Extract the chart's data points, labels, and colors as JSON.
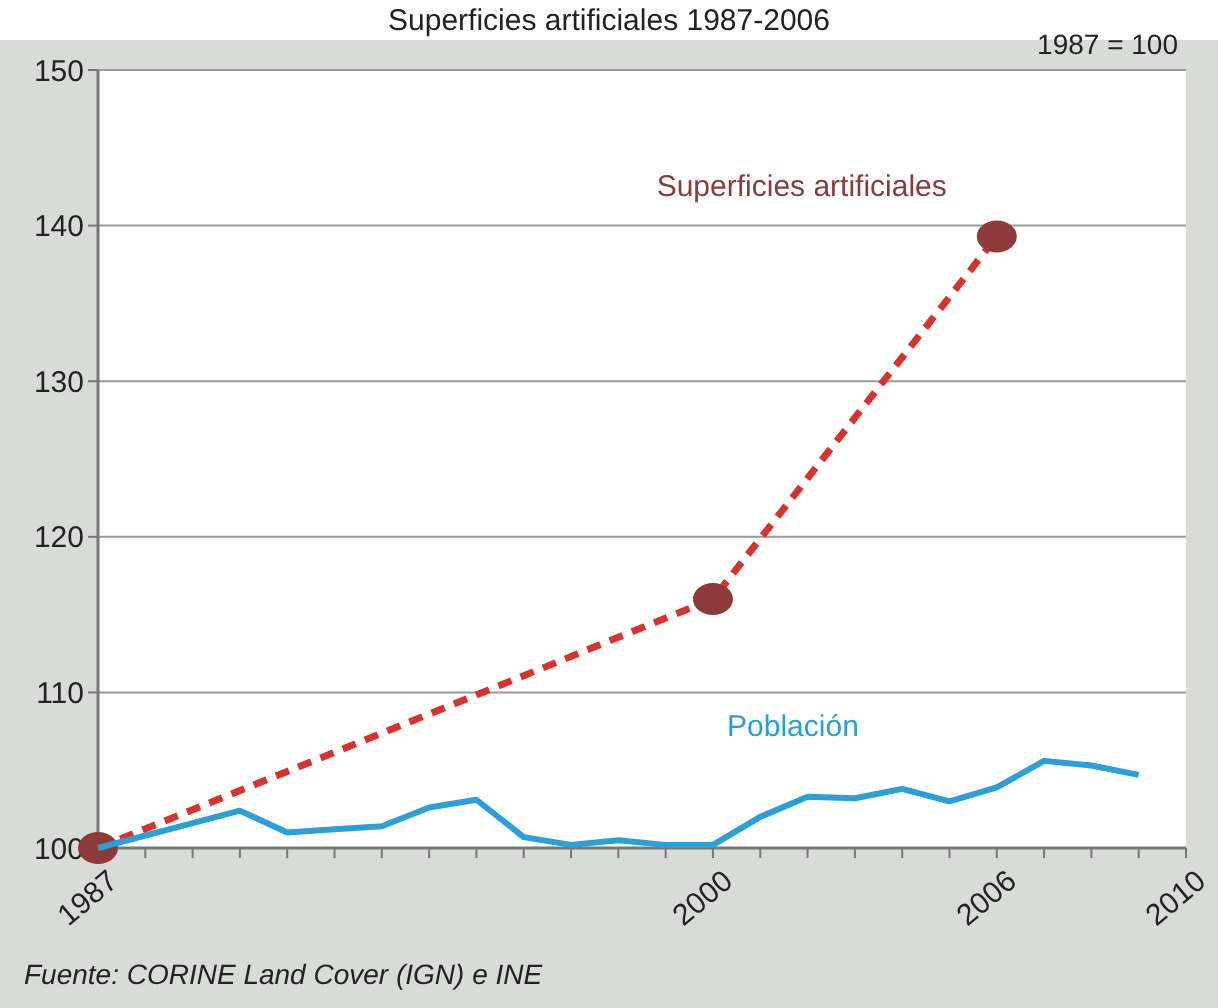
{
  "chart_data": {
    "type": "line",
    "title": "Superficies artificiales 1987-2006",
    "annotations": [
      "1987 = 100",
      "Fuente: CORINE Land Cover (IGN) e INE"
    ],
    "xlim": [
      1987,
      2010
    ],
    "xticks": [
      1987,
      {
        "value": 1988,
        "label": null
      },
      {
        "value": 1989,
        "label": null
      },
      {
        "value": 1990,
        "label": null
      },
      {
        "value": 1991,
        "label": null
      },
      {
        "value": 1992,
        "label": null
      },
      {
        "value": 1993,
        "label": null
      },
      {
        "value": 1994,
        "label": null
      },
      {
        "value": 1995,
        "label": null
      },
      {
        "value": 1996,
        "label": null
      },
      {
        "value": 1997,
        "label": null
      },
      {
        "value": 1998,
        "label": null
      },
      {
        "value": 1999,
        "label": null
      },
      2000,
      {
        "value": 2001,
        "label": null
      },
      {
        "value": 2002,
        "label": null
      },
      {
        "value": 2003,
        "label": null
      },
      {
        "value": 2004,
        "label": null
      },
      {
        "value": 2005,
        "label": null
      },
      2006,
      {
        "value": 2007,
        "label": null
      },
      {
        "value": 2008,
        "label": null
      },
      {
        "value": 2009,
        "label": null
      },
      2010
    ],
    "ylim": [
      100,
      150
    ],
    "yticks": [
      100,
      110,
      120,
      130,
      140,
      150
    ],
    "grid": "y",
    "series": [
      {
        "name": "Superficies artificiales",
        "color": "#d9312c",
        "line_style": "dashed",
        "marker": "circle",
        "x": [
          1987,
          2000,
          2006
        ],
        "values": [
          100,
          116.0,
          139.3
        ]
      },
      {
        "name": "Población",
        "color": "#2a9fd8",
        "line_style": "solid",
        "marker": "none",
        "x": [
          1987,
          1989,
          1990,
          1991,
          1992,
          1993,
          1994,
          1995,
          1996,
          1997,
          1998,
          1999,
          2000,
          2001,
          2002,
          2003,
          2004,
          2005,
          2006,
          2007,
          2008,
          2009
        ],
        "values": [
          100,
          101.6,
          102.4,
          101.0,
          101.2,
          101.4,
          102.6,
          103.1,
          100.7,
          100.2,
          100.5,
          100.2,
          100.2,
          102.0,
          103.3,
          103.2,
          103.8,
          103.0,
          103.9,
          105.6,
          105.3,
          104.7
        ]
      }
    ]
  }
}
